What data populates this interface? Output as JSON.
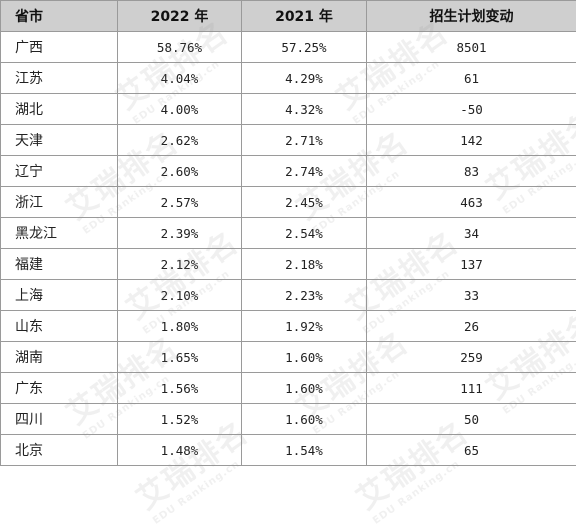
{
  "table": {
    "headers": [
      "省市",
      "2022 年",
      "2021 年",
      "招生计划变动"
    ],
    "rows": [
      [
        "广西",
        "58.76%",
        "57.25%",
        "8501"
      ],
      [
        "江苏",
        "4.04%",
        "4.29%",
        "61"
      ],
      [
        "湖北",
        "4.00%",
        "4.32%",
        "-50"
      ],
      [
        "天津",
        "2.62%",
        "2.71%",
        "142"
      ],
      [
        "辽宁",
        "2.60%",
        "2.74%",
        "83"
      ],
      [
        "浙江",
        "2.57%",
        "2.45%",
        "463"
      ],
      [
        "黑龙江",
        "2.39%",
        "2.54%",
        "34"
      ],
      [
        "福建",
        "2.12%",
        "2.18%",
        "137"
      ],
      [
        "上海",
        "2.10%",
        "2.23%",
        "33"
      ],
      [
        "山东",
        "1.80%",
        "1.92%",
        "26"
      ],
      [
        "湖南",
        "1.65%",
        "1.60%",
        "259"
      ],
      [
        "广东",
        "1.56%",
        "1.60%",
        "111"
      ],
      [
        "四川",
        "1.52%",
        "1.60%",
        "50"
      ],
      [
        "北京",
        "1.48%",
        "1.54%",
        "65"
      ]
    ]
  },
  "watermark": {
    "text": "艾瑞排名",
    "sub": "EDU Ranking.cn"
  }
}
